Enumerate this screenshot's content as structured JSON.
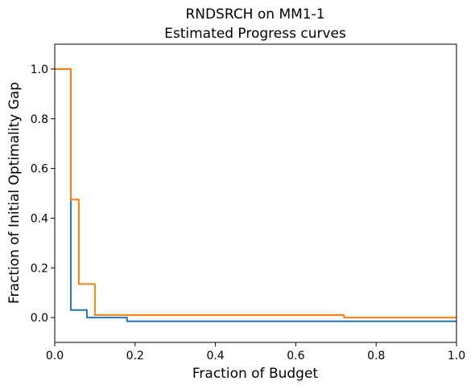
{
  "chart_data": {
    "type": "line",
    "step": true,
    "title_line1": "RNDSRCH on MM1-1",
    "title_line2": "Estimated Progress curves",
    "xlabel": "Fraction of Budget",
    "ylabel": "Fraction of Initial Optimality Gap",
    "xlim": [
      0,
      1
    ],
    "ylim": [
      -0.1,
      1.1
    ],
    "xticks": [
      0.0,
      0.2,
      0.4,
      0.6,
      0.8,
      1.0
    ],
    "xtick_labels": [
      "0.0",
      "0.2",
      "0.4",
      "0.6",
      "0.8",
      "1.0"
    ],
    "yticks": [
      0.0,
      0.2,
      0.4,
      0.6,
      0.8,
      1.0
    ],
    "ytick_labels": [
      "0.0",
      "0.2",
      "0.4",
      "0.6",
      "0.8",
      "1.0"
    ],
    "grid": false,
    "legend": "none",
    "series": [
      {
        "color": "#1f77b4",
        "x": [
          0.0,
          0.04,
          0.04,
          0.08,
          0.08,
          0.18,
          0.18,
          1.0
        ],
        "y": [
          1.0,
          1.0,
          0.03,
          0.03,
          0.0,
          0.0,
          -0.015,
          -0.015
        ]
      },
      {
        "color": "#ff7f0e",
        "x": [
          0.0,
          0.04,
          0.04,
          0.06,
          0.06,
          0.1,
          0.1,
          0.72,
          0.72,
          1.0
        ],
        "y": [
          1.0,
          1.0,
          0.475,
          0.475,
          0.135,
          0.135,
          0.01,
          0.01,
          0.0,
          0.0
        ]
      }
    ]
  }
}
